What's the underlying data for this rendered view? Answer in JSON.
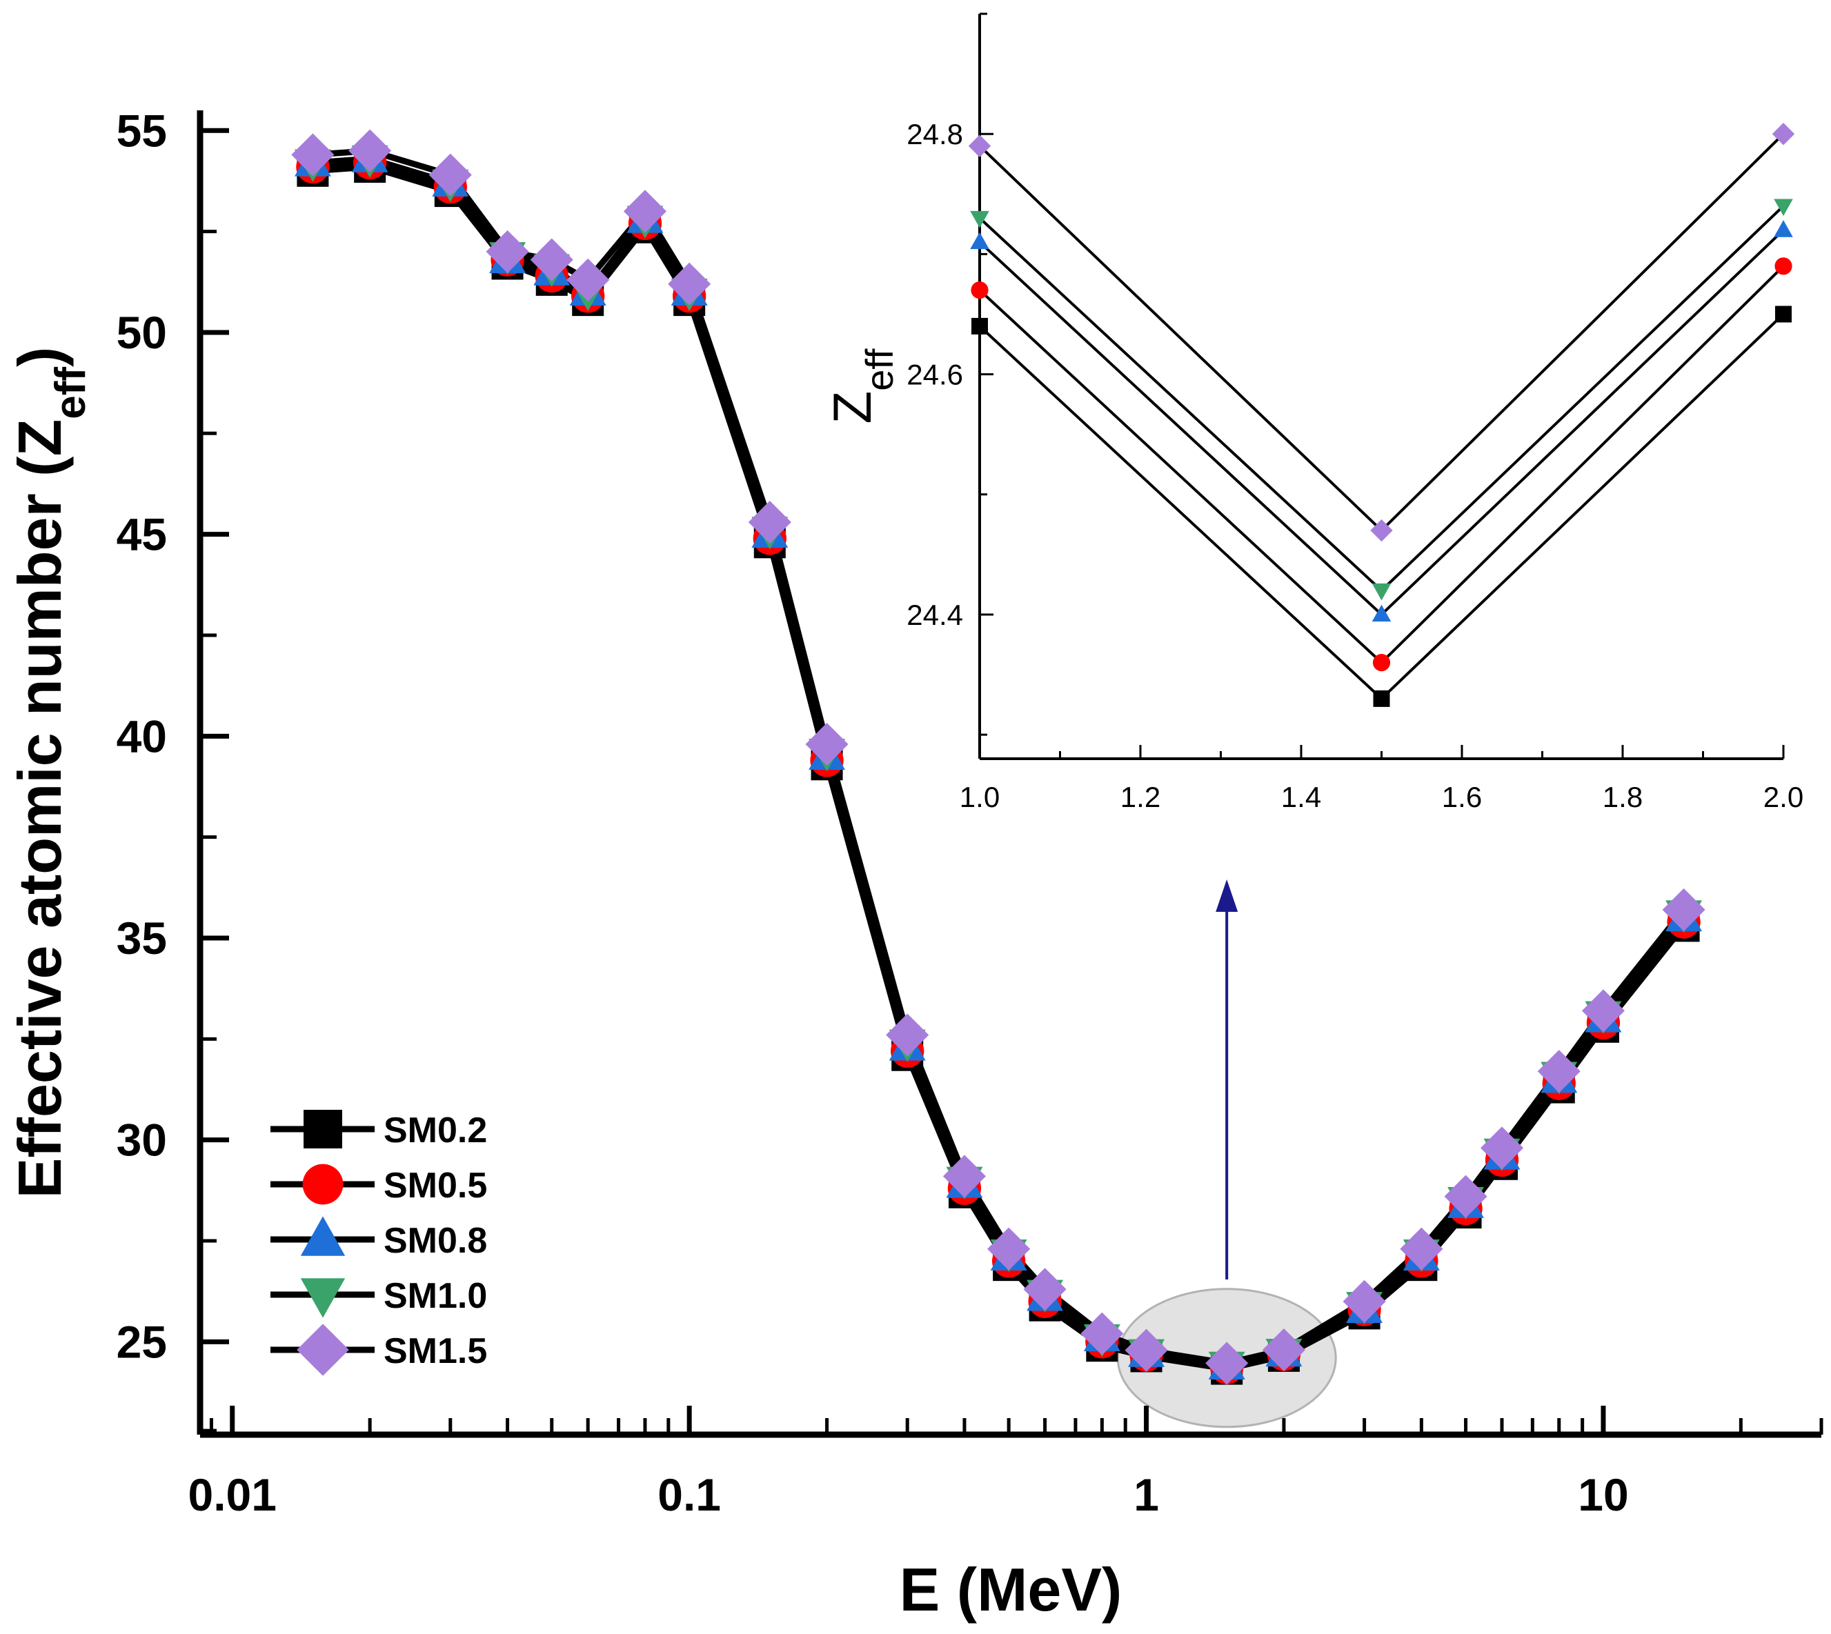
{
  "chart_data": [
    {
      "type": "line",
      "xlabel": "E (MeV)",
      "ylabel_main": "Effective atomic number (Z",
      "ylabel_sub": "eff",
      "ylabel_close": ")",
      "xscale": "log",
      "xlim": [
        0.0085,
        30
      ],
      "ylim": [
        22.7,
        55.5
      ],
      "x_ticks": [
        0.01,
        0.1,
        1,
        10
      ],
      "x_tick_labels": [
        "0.01",
        "0.1",
        "1",
        "10"
      ],
      "y_ticks": [
        25,
        30,
        35,
        40,
        45,
        50,
        55
      ],
      "y_tick_labels": [
        "25",
        "30",
        "35",
        "40",
        "45",
        "50",
        "55"
      ],
      "legend_position": "bottom-left",
      "x": [
        0.015,
        0.02,
        0.03,
        0.04,
        0.05,
        0.06,
        0.08,
        0.1,
        0.15,
        0.2,
        0.3,
        0.4,
        0.5,
        0.6,
        0.8,
        1,
        1.5,
        2,
        3,
        4,
        5,
        6,
        8,
        10,
        15
      ],
      "series": [
        {
          "name": "SM0.2",
          "marker": "square",
          "color": "#000000",
          "values": [
            54.0,
            54.1,
            53.5,
            51.7,
            51.3,
            50.8,
            52.6,
            50.8,
            44.8,
            39.3,
            32.1,
            28.7,
            26.9,
            25.9,
            24.9,
            24.64,
            24.33,
            24.65,
            25.7,
            26.9,
            28.2,
            29.4,
            31.3,
            32.8,
            35.3
          ]
        },
        {
          "name": "SM0.5",
          "marker": "circle",
          "color": "#ff0000",
          "values": [
            54.1,
            54.2,
            53.6,
            51.8,
            51.4,
            50.9,
            52.7,
            50.9,
            44.9,
            39.4,
            32.2,
            28.8,
            27.0,
            26.0,
            25.0,
            24.67,
            24.36,
            24.69,
            25.8,
            27.0,
            28.3,
            29.5,
            31.4,
            32.9,
            35.4
          ]
        },
        {
          "name": "SM0.8",
          "marker": "triangle-up",
          "color": "#1f6fd9",
          "values": [
            54.2,
            54.3,
            53.7,
            51.8,
            51.5,
            51.0,
            52.8,
            51.0,
            45.0,
            39.5,
            32.3,
            28.9,
            27.1,
            26.1,
            25.1,
            24.71,
            24.4,
            24.72,
            25.8,
            27.1,
            28.4,
            29.6,
            31.5,
            33.0,
            35.5
          ]
        },
        {
          "name": "SM1.0",
          "marker": "triangle-down",
          "color": "#3aa36a",
          "values": [
            54.2,
            54.3,
            53.7,
            51.9,
            51.6,
            51.0,
            52.8,
            51.0,
            45.1,
            39.6,
            32.4,
            29.0,
            27.2,
            26.2,
            25.1,
            24.73,
            24.42,
            24.74,
            25.9,
            27.2,
            28.5,
            29.7,
            31.6,
            33.1,
            35.6
          ]
        },
        {
          "name": "SM1.5",
          "marker": "diamond",
          "color": "#a77ddb",
          "values": [
            54.4,
            54.5,
            53.9,
            52.0,
            51.8,
            51.3,
            53.0,
            51.2,
            45.3,
            39.8,
            32.6,
            29.1,
            27.3,
            26.3,
            25.2,
            24.79,
            24.47,
            24.8,
            26.0,
            27.3,
            28.6,
            29.8,
            31.7,
            33.2,
            35.7
          ]
        }
      ]
    },
    {
      "type": "line",
      "ylabel_main": "Z",
      "ylabel_sub": "eff",
      "xlim": [
        1.0,
        2.0
      ],
      "ylim": [
        24.28,
        24.9
      ],
      "x_ticks": [
        1.0,
        1.2,
        1.4,
        1.6,
        1.8,
        2.0
      ],
      "x_tick_labels": [
        "1.0",
        "1.2",
        "1.4",
        "1.6",
        "1.8",
        "2.0"
      ],
      "y_ticks": [
        24.4,
        24.6,
        24.8
      ],
      "y_tick_labels": [
        "24.4",
        "24.6",
        "24.8"
      ],
      "x": [
        1.0,
        1.5,
        2.0
      ],
      "series": [
        {
          "name": "SM0.2",
          "marker": "square",
          "color": "#000000",
          "values": [
            24.64,
            24.33,
            24.65
          ]
        },
        {
          "name": "SM0.5",
          "marker": "circle",
          "color": "#ff0000",
          "values": [
            24.67,
            24.36,
            24.69
          ]
        },
        {
          "name": "SM0.8",
          "marker": "triangle-up",
          "color": "#1f6fd9",
          "values": [
            24.71,
            24.4,
            24.72
          ]
        },
        {
          "name": "SM1.0",
          "marker": "triangle-down",
          "color": "#3aa36a",
          "values": [
            24.73,
            24.42,
            24.74
          ]
        },
        {
          "name": "SM1.5",
          "marker": "diamond",
          "color": "#a77ddb",
          "values": [
            24.79,
            24.47,
            24.8
          ]
        }
      ]
    }
  ],
  "colors": {
    "arrow": "#1a1a8c",
    "highlight_fill": "#d9d9d9",
    "highlight_stroke": "#999999"
  }
}
